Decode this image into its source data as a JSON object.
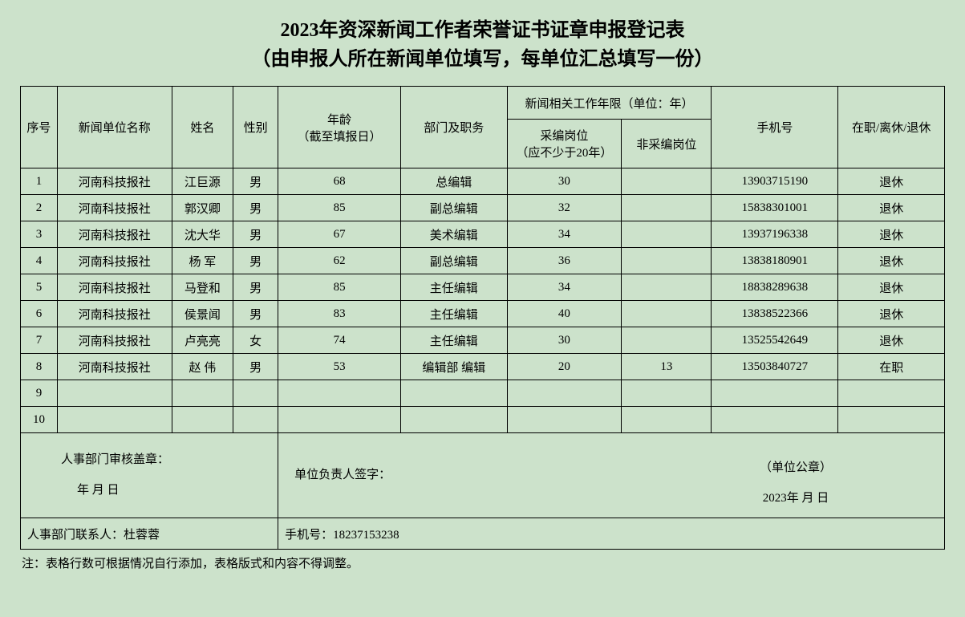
{
  "title_line1": "2023年资深新闻工作者荣誉证书证章申报登记表",
  "title_line2": "（由申报人所在新闻单位填写，每单位汇总填写一份）",
  "headers": {
    "seq": "序号",
    "unit": "新闻单位名称",
    "name": "姓名",
    "gender": "性别",
    "age": "年龄\n（截至填报日）",
    "dept": "部门及职务",
    "work_group": "新闻相关工作年限（单位：年）",
    "work_edit": "采编岗位\n（应不少于20年）",
    "work_nonedit": "非采编岗位",
    "phone": "手机号",
    "status": "在职/离休/退休"
  },
  "rows": [
    {
      "seq": "1",
      "unit": "河南科技报社",
      "name": "江巨源",
      "gender": "男",
      "age": "68",
      "dept": "总编辑",
      "work1": "30",
      "work2": "",
      "phone": "13903715190",
      "status": "退休"
    },
    {
      "seq": "2",
      "unit": "河南科技报社",
      "name": "郭汉卿",
      "gender": "男",
      "age": "85",
      "dept": "副总编辑",
      "work1": "32",
      "work2": "",
      "phone": "15838301001",
      "status": "退休"
    },
    {
      "seq": "3",
      "unit": "河南科技报社",
      "name": "沈大华",
      "gender": "男",
      "age": "67",
      "dept": "美术编辑",
      "work1": "34",
      "work2": "",
      "phone": "13937196338",
      "status": "退休"
    },
    {
      "seq": "4",
      "unit": "河南科技报社",
      "name": "杨  军",
      "gender": "男",
      "age": "62",
      "dept": "副总编辑",
      "work1": "36",
      "work2": "",
      "phone": "13838180901",
      "status": "退休"
    },
    {
      "seq": "5",
      "unit": "河南科技报社",
      "name": "马登和",
      "gender": "男",
      "age": "85",
      "dept": "主任编辑",
      "work1": "34",
      "work2": "",
      "phone": "18838289638",
      "status": "退休"
    },
    {
      "seq": "6",
      "unit": "河南科技报社",
      "name": "侯景闻",
      "gender": "男",
      "age": "83",
      "dept": "主任编辑",
      "work1": "40",
      "work2": "",
      "phone": "13838522366",
      "status": "退休"
    },
    {
      "seq": "7",
      "unit": "河南科技报社",
      "name": "卢亮亮",
      "gender": "女",
      "age": "74",
      "dept": "主任编辑",
      "work1": "30",
      "work2": "",
      "phone": "13525542649",
      "status": "退休"
    },
    {
      "seq": "8",
      "unit": "河南科技报社",
      "name": "赵  伟",
      "gender": "男",
      "age": "53",
      "dept": "编辑部 编辑",
      "work1": "20",
      "work2": "13",
      "phone": "13503840727",
      "status": "在职"
    },
    {
      "seq": "9",
      "unit": "",
      "name": "",
      "gender": "",
      "age": "",
      "dept": "",
      "work1": "",
      "work2": "",
      "phone": "",
      "status": ""
    },
    {
      "seq": "10",
      "unit": "",
      "name": "",
      "gender": "",
      "age": "",
      "dept": "",
      "work1": "",
      "work2": "",
      "phone": "",
      "status": ""
    }
  ],
  "footer": {
    "hr_seal_label": "人事部门审核盖章：",
    "hr_date": "年    月    日",
    "leader_label": "单位负责人签字：",
    "unit_seal": "（单位公章）",
    "unit_date": "2023年    月    日"
  },
  "contact": {
    "person_label": "人事部门联系人：杜蓉蓉",
    "phone_label": "手机号：18237153238"
  },
  "note": "注：表格行数可根据情况自行添加，表格版式和内容不得调整。",
  "colors": {
    "background": "#cce2cb",
    "border": "#000000",
    "text": "#000000"
  }
}
